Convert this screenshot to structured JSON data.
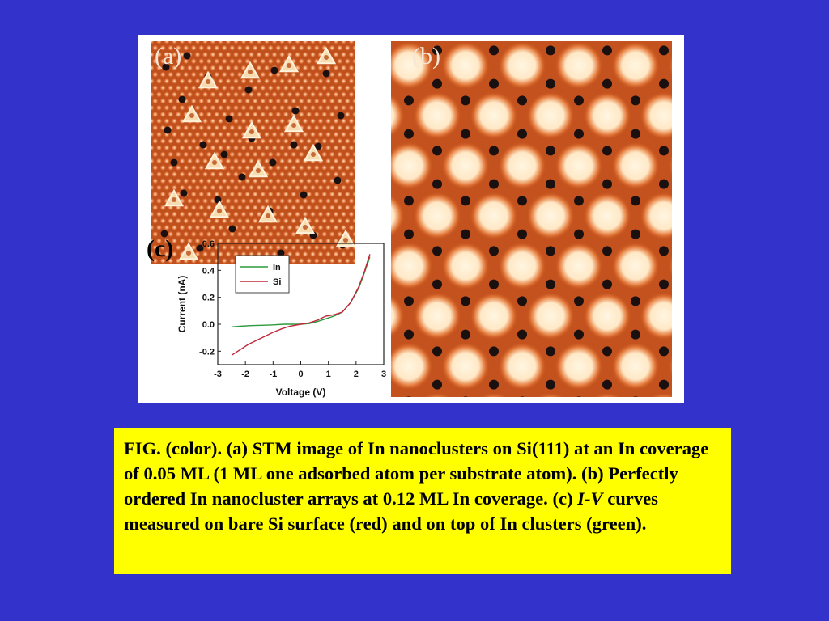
{
  "panels": {
    "a_label": "(a)",
    "b_label": "(b)",
    "c_label": "(c)"
  },
  "colors": {
    "background": "#3333cc",
    "caption_background": "#ffff00",
    "stm_orange": "#c0501c",
    "stm_bright": "#fff6e2",
    "stm_dark": "#1a1010",
    "in_curve": "#2e9a3c",
    "si_curve": "#c0283a"
  },
  "icons": [
    "stm-image-a",
    "stm-image-b"
  ],
  "caption": {
    "part1": "FIG. (color). (a) STM image of In nanoclusters on Si(111) at an In coverage of 0.05 ML (1 ML  one adsorbed atom per substrate atom). (b) Perfectly ordered In nanocluster arrays at 0.12 ML In coverage. (c) ",
    "iv": "I-V",
    "part2": " curves measured on bare Si surface (red) and on top of In clusters (green)."
  },
  "chart_data": {
    "type": "line",
    "title": "",
    "xlabel": "Voltage (V)",
    "ylabel": "Current (nA)",
    "xlim": [
      -3,
      3
    ],
    "ylim": [
      -0.3,
      0.6
    ],
    "xticks": [
      "-3",
      "-2",
      "-1",
      "0",
      "1",
      "2",
      "3"
    ],
    "yticks": [
      "-0.2",
      "0.0",
      "0.2",
      "0.4",
      "0.6"
    ],
    "legend_position": "top-left",
    "grid": false,
    "series": [
      {
        "name": "In",
        "color": "#2e9a3c",
        "x": [
          -2.5,
          -2.2,
          -1.8,
          -1.4,
          -1.0,
          -0.6,
          -0.3,
          0.0,
          0.3,
          0.6,
          0.9,
          1.2,
          1.5,
          1.8,
          2.1,
          2.3,
          2.5
        ],
        "y": [
          -0.02,
          -0.015,
          -0.01,
          -0.008,
          -0.005,
          0.0,
          0.0,
          0.0,
          0.005,
          0.02,
          0.04,
          0.06,
          0.09,
          0.16,
          0.27,
          0.38,
          0.5
        ]
      },
      {
        "name": "Si",
        "color": "#c0283a",
        "x": [
          -2.5,
          -2.2,
          -1.9,
          -1.6,
          -1.3,
          -1.0,
          -0.7,
          -0.4,
          0.0,
          0.3,
          0.6,
          0.9,
          1.2,
          1.5,
          1.8,
          2.1,
          2.3,
          2.5
        ],
        "y": [
          -0.23,
          -0.19,
          -0.15,
          -0.12,
          -0.09,
          -0.06,
          -0.035,
          -0.015,
          0.0,
          0.01,
          0.03,
          0.06,
          0.07,
          0.09,
          0.16,
          0.28,
          0.39,
          0.52
        ]
      }
    ]
  }
}
